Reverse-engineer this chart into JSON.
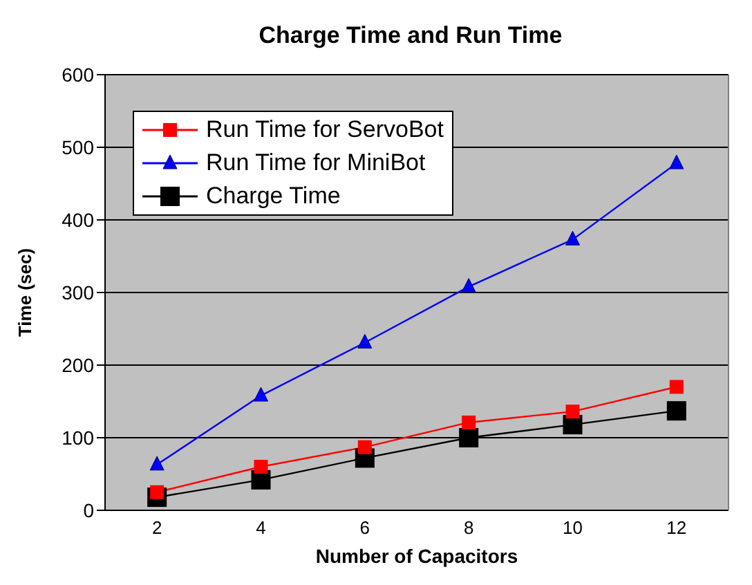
{
  "chart_data": {
    "type": "line",
    "title": "Charge Time and Run Time",
    "xlabel": "Number of Capacitors",
    "ylabel": "Time (sec)",
    "categories": [
      "2",
      "4",
      "6",
      "8",
      "10",
      "12"
    ],
    "series": [
      {
        "name": "Run Time for ServoBot",
        "color": "#ff0000",
        "marker": "square",
        "values": [
          25,
          60,
          87,
          121,
          136,
          170
        ]
      },
      {
        "name": "Run Time for MiniBot",
        "color": "#0000ff",
        "marker": "triangle",
        "values": [
          63,
          158,
          231,
          308,
          373,
          478
        ]
      },
      {
        "name": "Charge Time",
        "color": "#000000",
        "marker": "square",
        "values": [
          18,
          42,
          72,
          100,
          118,
          137
        ]
      }
    ],
    "ylim": [
      0,
      600
    ],
    "yticks": [
      0,
      100,
      200,
      300,
      400,
      500,
      600
    ],
    "grid": "y",
    "legend": "top left"
  }
}
